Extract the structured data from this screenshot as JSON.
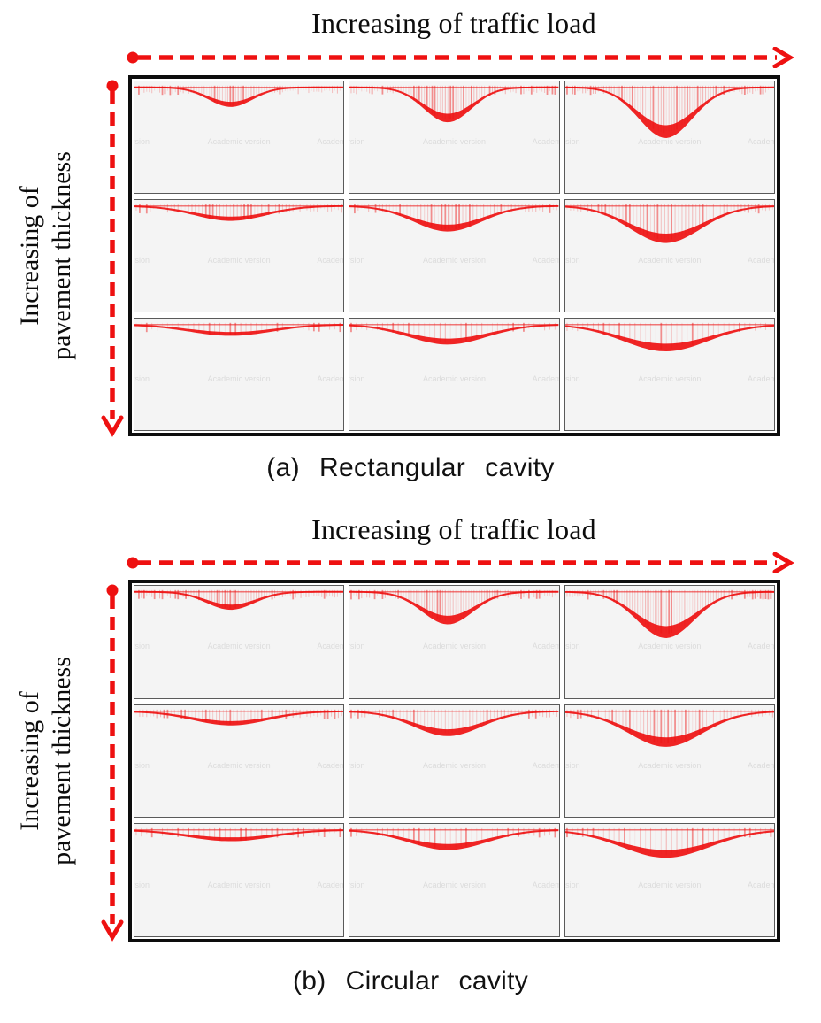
{
  "figure": {
    "watermark": "Academic version",
    "accent_red": "#ee1111",
    "panel_background": "#f4f4f4",
    "frame_color": "#0d0d0d"
  },
  "sections": [
    {
      "id": "a",
      "top_axis_label": "Increasing of traffic load",
      "left_axis_label_lines": [
        "Increasing of",
        "pavement thickness"
      ],
      "caption": "(a) Rectangular cavity",
      "cavity_type": "rectangular",
      "grid": {
        "rows": [
          {
            "hatch_spacing": 3,
            "panels": [
              {
                "depth": 20,
                "sigma": 26,
                "center": 0.46,
                "thickness": 4
              },
              {
                "depth": 36,
                "sigma": 28,
                "center": 0.47,
                "thickness": 8
              },
              {
                "depth": 52,
                "sigma": 32,
                "center": 0.48,
                "thickness": 13
              }
            ]
          },
          {
            "hatch_spacing": 4,
            "panels": [
              {
                "depth": 15,
                "sigma": 42,
                "center": 0.46,
                "thickness": 3
              },
              {
                "depth": 26,
                "sigma": 40,
                "center": 0.47,
                "thickness": 6
              },
              {
                "depth": 38,
                "sigma": 42,
                "center": 0.48,
                "thickness": 9
              }
            ]
          },
          {
            "hatch_spacing": 6,
            "panels": [
              {
                "depth": 11,
                "sigma": 48,
                "center": 0.46,
                "thickness": 2.5
              },
              {
                "depth": 20,
                "sigma": 46,
                "center": 0.47,
                "thickness": 5
              },
              {
                "depth": 27,
                "sigma": 50,
                "center": 0.48,
                "thickness": 7
              }
            ]
          }
        ]
      }
    },
    {
      "id": "b",
      "top_axis_label": "Increasing of traffic load",
      "left_axis_label_lines": [
        "Increasing of",
        "pavement thickness"
      ],
      "caption": "(b) Circular cavity",
      "cavity_type": "circular",
      "grid": {
        "rows": [
          {
            "hatch_spacing": 3,
            "panels": [
              {
                "depth": 18,
                "sigma": 28,
                "center": 0.46,
                "thickness": 4
              },
              {
                "depth": 33,
                "sigma": 30,
                "center": 0.47,
                "thickness": 8
              },
              {
                "depth": 47,
                "sigma": 34,
                "center": 0.48,
                "thickness": 12
              }
            ]
          },
          {
            "hatch_spacing": 4,
            "panels": [
              {
                "depth": 14,
                "sigma": 44,
                "center": 0.46,
                "thickness": 3
              },
              {
                "depth": 25,
                "sigma": 40,
                "center": 0.47,
                "thickness": 6
              },
              {
                "depth": 36,
                "sigma": 44,
                "center": 0.48,
                "thickness": 9
              }
            ]
          },
          {
            "hatch_spacing": 6,
            "panels": [
              {
                "depth": 11,
                "sigma": 50,
                "center": 0.46,
                "thickness": 2.5
              },
              {
                "depth": 20,
                "sigma": 46,
                "center": 0.47,
                "thickness": 5
              },
              {
                "depth": 28,
                "sigma": 52,
                "center": 0.48,
                "thickness": 7
              }
            ]
          }
        ]
      }
    }
  ]
}
